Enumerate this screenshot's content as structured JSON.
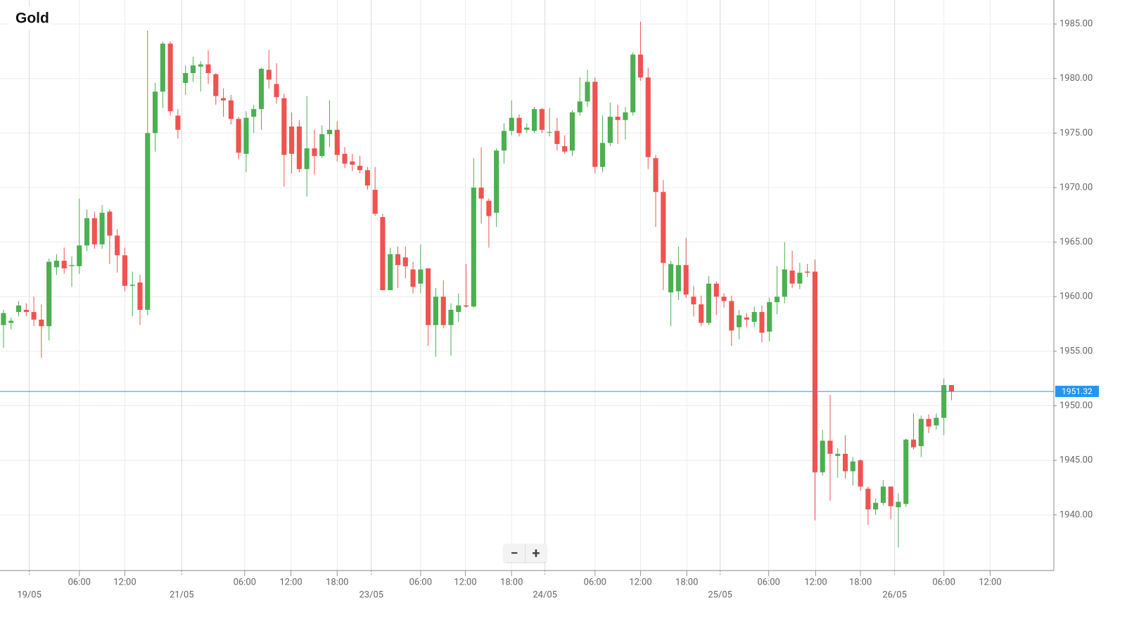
{
  "chart_data": {
    "type": "candlestick",
    "title": "Gold",
    "up_color": "#4caf50",
    "down_color": "#ef5350",
    "last_price": 1951.32,
    "last_price_color": "#2196f3",
    "open": [
      1957.4,
      1957.6,
      1958.6,
      1958.8,
      1958.6,
      1957.9,
      1957.3,
      1962.7,
      1963.3,
      1962.8,
      1962.8,
      1964.7,
      1967.2,
      1964.8,
      1967.8,
      1965.6,
      1963.8,
      1961.0,
      1961.3,
      1958.8,
      1975.0,
      1978.8,
      1983.2,
      1976.6,
      1979.6,
      1980.5,
      1981.1,
      1981.3,
      1980.4,
      1978.2,
      1978.0,
      1976.3,
      1973.1,
      1976.5,
      1977.2,
      1980.8,
      1979.5,
      1978.2,
      1975.6,
      1975.6,
      1971.7,
      1973.6,
      1972.9,
      1974.9,
      1975.3,
      1973.1,
      1972.4,
      1972.0,
      1971.6,
      1969.8,
      1967.3,
      1960.6,
      1963.9,
      1963.6,
      1962.5,
      1961.2,
      1962.6,
      1957.4,
      1960.0,
      1957.4,
      1958.6,
      1959.2,
      1959.1,
      1970.0,
      1968.8,
      1967.7,
      1973.4,
      1975.2,
      1976.4,
      1975.3,
      1975.2,
      1977.2,
      1975.1,
      1975.2,
      1973.8,
      1973.4,
      1976.9,
      1977.9,
      1979.7,
      1971.9,
      1974.1,
      1976.5,
      1976.2,
      1976.9,
      1982.2,
      1980.1,
      1972.7,
      1969.6,
      1960.4,
      1960.5,
      1962.9,
      1960.0,
      1959.3,
      1957.6,
      1961.2,
      1960.0,
      1959.6,
      1957.2,
      1958.1,
      1957.7,
      1958.6,
      1956.8,
      1959.5,
      1960.0,
      1962.4,
      1961.2,
      1962.3,
      1962.3,
      1943.9,
      1946.8,
      1945.4,
      1945.6,
      1944.0,
      1945.0,
      1942.4,
      1940.5,
      1941.1,
      1942.6,
      1940.7,
      1941.0,
      1946.9,
      1946.3,
      1948.8,
      1948.2,
      1948.9,
      1951.9
    ],
    "high": [
      1958.8,
      1958.1,
      1959.6,
      1959.4,
      1960.0,
      1959.3,
      1963.5,
      1963.9,
      1964.5,
      1963.7,
      1969.0,
      1968.0,
      1967.8,
      1968.4,
      1968.0,
      1966.2,
      1964.5,
      1962.3,
      1962.0,
      1984.4,
      1979.6,
      1983.4,
      1983.4,
      1977.2,
      1981.2,
      1982.0,
      1981.6,
      1982.6,
      1980.5,
      1979.1,
      1978.5,
      1976.5,
      1977.0,
      1977.6,
      1981.0,
      1982.6,
      1981.4,
      1978.6,
      1976.9,
      1976.2,
      1978.4,
      1975.3,
      1975.7,
      1978.0,
      1976.1,
      1973.7,
      1973.1,
      1972.9,
      1971.9,
      1971.9,
      1967.6,
      1964.5,
      1964.6,
      1964.6,
      1963.2,
      1964.8,
      1962.6,
      1960.8,
      1961.5,
      1959.4,
      1960.3,
      1963.0,
      1972.7,
      1973.7,
      1969.0,
      1973.6,
      1975.9,
      1978.0,
      1976.7,
      1975.9,
      1977.4,
      1977.3,
      1977.3,
      1976.4,
      1974.8,
      1977.1,
      1980.1,
      1980.8,
      1980.1,
      1976.6,
      1977.8,
      1977.6,
      1977.4,
      1982.4,
      1985.2,
      1981.0,
      1973.0,
      1970.7,
      1963.3,
      1964.6,
      1965.4,
      1961.0,
      1960.1,
      1961.9,
      1961.4,
      1960.3,
      1960.1,
      1958.8,
      1958.5,
      1959.1,
      1959.2,
      1959.9,
      1962.8,
      1965.0,
      1964.2,
      1963.1,
      1963.0,
      1963.4,
      1947.8,
      1951.0,
      1946.1,
      1947.3,
      1945.3,
      1945.1,
      1942.6,
      1941.5,
      1943.2,
      1942.6,
      1942.0,
      1947.0,
      1949.3,
      1949.1,
      1949.2,
      1949.3,
      1952.5,
      1951.9
    ],
    "low": [
      1955.3,
      1957.0,
      1958.2,
      1958.2,
      1957.3,
      1954.4,
      1956.0,
      1962.0,
      1962.1,
      1960.9,
      1962.1,
      1964.2,
      1964.4,
      1964.4,
      1963.0,
      1962.2,
      1960.5,
      1958.2,
      1957.4,
      1958.3,
      1973.3,
      1977.3,
      1976.6,
      1974.5,
      1978.5,
      1979.7,
      1978.8,
      1979.5,
      1977.6,
      1976.5,
      1975.8,
      1972.6,
      1971.4,
      1975.0,
      1975.3,
      1979.1,
      1977.7,
      1970.1,
      1971.3,
      1971.4,
      1969.2,
      1971.2,
      1972.7,
      1973.7,
      1972.4,
      1971.8,
      1971.5,
      1971.3,
      1969.8,
      1967.4,
      1960.6,
      1960.6,
      1960.8,
      1961.7,
      1960.3,
      1960.3,
      1955.5,
      1954.5,
      1957.1,
      1954.6,
      1957.7,
      1959.0,
      1959.0,
      1966.7,
      1964.5,
      1966.4,
      1972.2,
      1974.8,
      1974.7,
      1975.0,
      1975.0,
      1975.0,
      1974.7,
      1973.4,
      1973.1,
      1972.9,
      1976.6,
      1977.4,
      1971.3,
      1971.4,
      1973.8,
      1974.0,
      1974.4,
      1976.6,
      1979.8,
      1971.7,
      1966.4,
      1960.6,
      1957.3,
      1959.7,
      1959.9,
      1958.2,
      1957.3,
      1957.4,
      1958.3,
      1959.0,
      1955.5,
      1956.1,
      1957.2,
      1957.2,
      1955.8,
      1955.9,
      1958.4,
      1959.4,
      1960.8,
      1960.7,
      1961.8,
      1939.5,
      1943.6,
      1941.3,
      1943.4,
      1943.3,
      1942.7,
      1942.2,
      1939.1,
      1940.0,
      1940.9,
      1939.6,
      1937.0,
      1940.7,
      1946.0,
      1945.3,
      1947.5,
      1947.8,
      1947.3,
      1950.5
    ],
    "close": [
      1958.5,
      1957.8,
      1959.2,
      1958.6,
      1957.9,
      1957.3,
      1963.2,
      1963.3,
      1962.6,
      1962.9,
      1964.7,
      1967.2,
      1964.8,
      1967.7,
      1965.6,
      1963.8,
      1961.0,
      1961.1,
      1958.8,
      1975.0,
      1978.8,
      1983.2,
      1977.0,
      1975.3,
      1980.5,
      1981.2,
      1981.3,
      1980.5,
      1978.4,
      1978.0,
      1976.3,
      1973.2,
      1976.4,
      1977.2,
      1980.9,
      1979.9,
      1978.3,
      1973.0,
      1973.1,
      1971.7,
      1973.6,
      1972.9,
      1974.9,
      1975.3,
      1973.0,
      1972.2,
      1972.1,
      1971.6,
      1970.2,
      1967.6,
      1960.6,
      1963.9,
      1962.9,
      1962.8,
      1960.9,
      1962.5,
      1957.4,
      1960.0,
      1957.4,
      1958.8,
      1959.2,
      1959.1,
      1970.0,
      1969.0,
      1967.4,
      1973.4,
      1975.2,
      1976.4,
      1975.0,
      1975.5,
      1977.2,
      1975.3,
      1975.1,
      1974.0,
      1973.3,
      1976.9,
      1977.9,
      1979.7,
      1971.9,
      1974.1,
      1976.5,
      1976.2,
      1976.9,
      1982.2,
      1980.1,
      1972.8,
      1969.6,
      1963.1,
      1963.0,
      1962.9,
      1960.2,
      1959.3,
      1957.6,
      1961.2,
      1960.0,
      1959.6,
      1956.9,
      1958.3,
      1957.9,
      1958.6,
      1956.7,
      1959.5,
      1960.0,
      1962.5,
      1961.2,
      1962.2,
      1962.2,
      1943.9,
      1946.8,
      1945.6,
      1945.6,
      1944.0,
      1944.9,
      1942.6,
      1940.5,
      1941.1,
      1942.6,
      1940.8,
      1941.2,
      1946.9,
      1946.2,
      1948.8,
      1948.1,
      1948.9,
      1951.9,
      1951.32
    ],
    "xlim": [
      -0.46,
      138.5
    ],
    "xticks": [
      {
        "value": 3.4,
        "label": "19/05"
      },
      {
        "value": 10.0,
        "label": "06:00"
      },
      {
        "value": 16.0,
        "label": "12:00"
      },
      {
        "value": 23.5,
        "label": "21/05"
      },
      {
        "value": 31.8,
        "label": "06:00"
      },
      {
        "value": 37.9,
        "label": "12:00"
      },
      {
        "value": 44.0,
        "label": "18:00"
      },
      {
        "value": 48.5,
        "label": "23/05"
      },
      {
        "value": 55.0,
        "label": "06:00"
      },
      {
        "value": 60.9,
        "label": "12:00"
      },
      {
        "value": 67.0,
        "label": "18:00"
      },
      {
        "value": 71.4,
        "label": "24/05"
      },
      {
        "value": 78.0,
        "label": "06:00"
      },
      {
        "value": 84.0,
        "label": "12:00"
      },
      {
        "value": 90.1,
        "label": "18:00"
      },
      {
        "value": 94.5,
        "label": "25/05"
      },
      {
        "value": 100.9,
        "label": "06:00"
      },
      {
        "value": 107.1,
        "label": "12:00"
      },
      {
        "value": 113.0,
        "label": "18:00"
      },
      {
        "value": 117.5,
        "label": "26/05"
      },
      {
        "value": 124.0,
        "label": "06:00"
      },
      {
        "value": 130.1,
        "label": "12:00"
      }
    ],
    "ylim": [
      1934.9,
      1987.2
    ],
    "yticks": [
      {
        "value": 1940,
        "label": "1940.00"
      },
      {
        "value": 1945,
        "label": "1945.00"
      },
      {
        "value": 1950,
        "label": "1950.00"
      },
      {
        "value": 1955,
        "label": "1955.00"
      },
      {
        "value": 1960,
        "label": "1960.00"
      },
      {
        "value": 1965,
        "label": "1965.00"
      },
      {
        "value": 1970,
        "label": "1970.00"
      },
      {
        "value": 1975,
        "label": "1975.00"
      },
      {
        "value": 1980,
        "label": "1980.00"
      },
      {
        "value": 1985,
        "label": "1985.00"
      }
    ],
    "grid": true
  },
  "controls": {
    "zoom_out": "−",
    "zoom_in": "+"
  }
}
